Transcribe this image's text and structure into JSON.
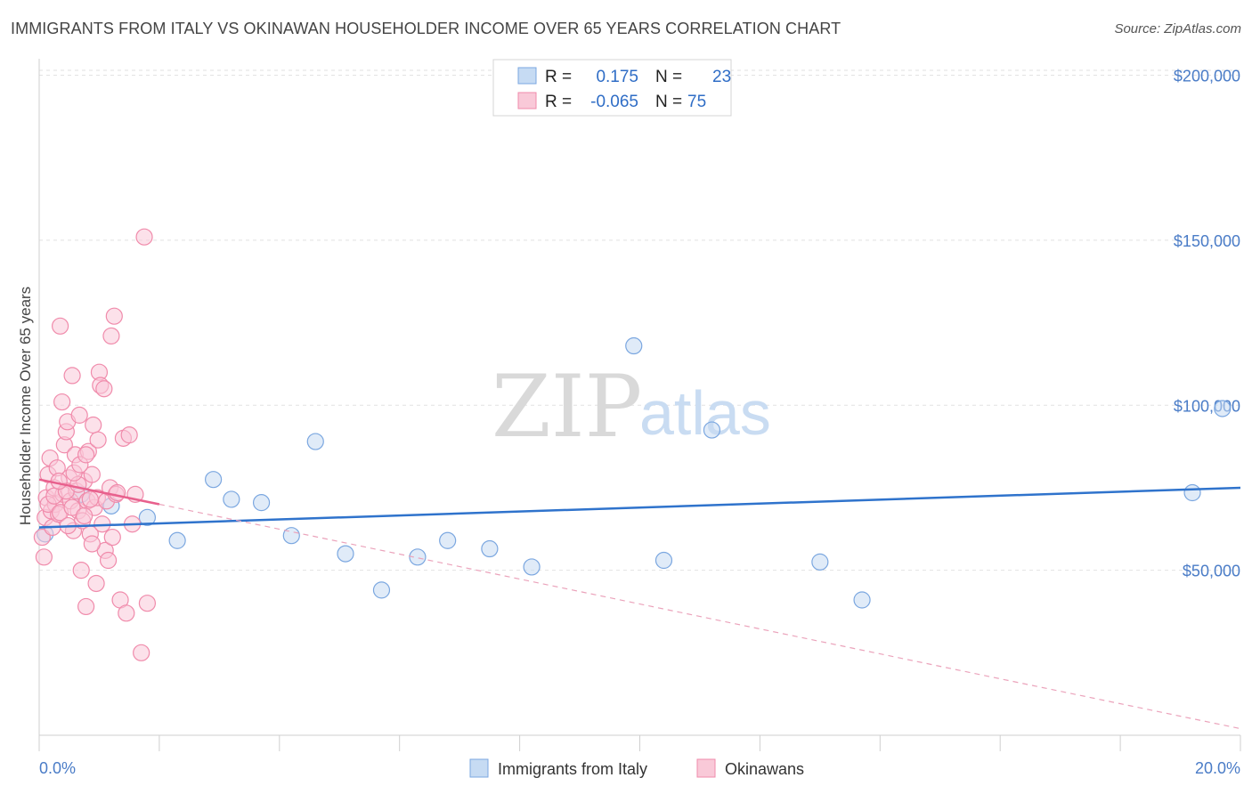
{
  "title": "IMMIGRANTS FROM ITALY VS OKINAWAN HOUSEHOLDER INCOME OVER 65 YEARS CORRELATION CHART",
  "source": "Source: ZipAtlas.com",
  "watermark": {
    "zip": "ZIP",
    "atlas": "atlas"
  },
  "chart_data": {
    "type": "scatter",
    "xlabel": "",
    "ylabel": "Householder Income Over 65 years",
    "xlim": [
      0,
      20
    ],
    "ylim": [
      0,
      205000
    ],
    "x_tick_labels": {
      "left": "0.0%",
      "right": "20.0%"
    },
    "y_ticks": [
      {
        "value": 50000,
        "label": "$50,000"
      },
      {
        "value": 100000,
        "label": "$100,000"
      },
      {
        "value": 150000,
        "label": "$150,000"
      },
      {
        "value": 200000,
        "label": "$200,000"
      }
    ],
    "legend": {
      "r_label": "R =",
      "n_label": "N =",
      "entries": [
        {
          "r": "0.175",
          "n": "23"
        },
        {
          "r": "-0.065",
          "n": "75"
        }
      ]
    },
    "series": [
      {
        "name": "Immigrants from Italy",
        "color": "#7ba7e0",
        "fill": "#c6dbf3",
        "trend_color": "#2f73cc",
        "trend": {
          "x0": 0,
          "y0": 63000,
          "x1": 20,
          "y1": 75000
        },
        "points": [
          [
            0.1,
            61000
          ],
          [
            0.7,
            73000
          ],
          [
            1.2,
            69500
          ],
          [
            1.8,
            66000
          ],
          [
            2.3,
            59000
          ],
          [
            2.9,
            77500
          ],
          [
            3.2,
            71500
          ],
          [
            3.7,
            70500
          ],
          [
            4.2,
            60500
          ],
          [
            4.6,
            89000
          ],
          [
            5.1,
            55000
          ],
          [
            5.7,
            44000
          ],
          [
            6.3,
            54000
          ],
          [
            6.8,
            59000
          ],
          [
            7.5,
            56500
          ],
          [
            8.2,
            51000
          ],
          [
            9.9,
            118000
          ],
          [
            10.4,
            53000
          ],
          [
            11.2,
            92500
          ],
          [
            13.0,
            52500
          ],
          [
            13.7,
            41000
          ],
          [
            19.2,
            73500
          ],
          [
            19.7,
            99000
          ]
        ]
      },
      {
        "name": "Okinawans",
        "color": "#f08bab",
        "fill": "#f9c9d8",
        "trend_color": "#e8608d",
        "trend": {
          "x0": 0,
          "y0": 77500,
          "x1": 2.0,
          "y1": 70000
        },
        "trend_dashed": {
          "x0": 2.0,
          "y0": 70000,
          "x1": 20,
          "y1": 2000
        },
        "points": [
          [
            0.05,
            60000
          ],
          [
            0.08,
            54000
          ],
          [
            0.1,
            66000
          ],
          [
            0.12,
            72000
          ],
          [
            0.15,
            79000
          ],
          [
            0.18,
            84000
          ],
          [
            0.2,
            68000
          ],
          [
            0.22,
            63000
          ],
          [
            0.25,
            75000
          ],
          [
            0.27,
            70000
          ],
          [
            0.3,
            81000
          ],
          [
            0.32,
            67000
          ],
          [
            0.35,
            124000
          ],
          [
            0.38,
            101000
          ],
          [
            0.4,
            73000
          ],
          [
            0.42,
            88000
          ],
          [
            0.45,
            92000
          ],
          [
            0.47,
            95000
          ],
          [
            0.5,
            78000
          ],
          [
            0.52,
            71000
          ],
          [
            0.55,
            109000
          ],
          [
            0.57,
            62000
          ],
          [
            0.6,
            85000
          ],
          [
            0.62,
            74000
          ],
          [
            0.65,
            68000
          ],
          [
            0.67,
            97000
          ],
          [
            0.7,
            50000
          ],
          [
            0.72,
            65000
          ],
          [
            0.75,
            77000
          ],
          [
            0.78,
            39000
          ],
          [
            0.8,
            71000
          ],
          [
            0.82,
            86000
          ],
          [
            0.85,
            61000
          ],
          [
            0.88,
            79000
          ],
          [
            0.9,
            94000
          ],
          [
            0.92,
            69000
          ],
          [
            0.95,
            46000
          ],
          [
            0.97,
            72000
          ],
          [
            1.0,
            110000
          ],
          [
            1.02,
            106000
          ],
          [
            1.05,
            64000
          ],
          [
            1.08,
            105000
          ],
          [
            1.1,
            56000
          ],
          [
            1.12,
            71000
          ],
          [
            1.15,
            53000
          ],
          [
            1.18,
            75000
          ],
          [
            1.2,
            121000
          ],
          [
            1.22,
            60000
          ],
          [
            1.25,
            127000
          ],
          [
            1.28,
            73000
          ],
          [
            1.3,
            73500
          ],
          [
            1.35,
            41000
          ],
          [
            1.4,
            90000
          ],
          [
            1.45,
            37000
          ],
          [
            1.5,
            91000
          ],
          [
            1.55,
            64000
          ],
          [
            1.6,
            73000
          ],
          [
            1.7,
            25000
          ],
          [
            1.75,
            151000
          ],
          [
            1.8,
            40000
          ],
          [
            0.15,
            70000
          ],
          [
            0.25,
            72500
          ],
          [
            0.35,
            67500
          ],
          [
            0.45,
            74000
          ],
          [
            0.55,
            69000
          ],
          [
            0.65,
            76000
          ],
          [
            0.75,
            66500
          ],
          [
            0.85,
            71500
          ],
          [
            0.33,
            77000
          ],
          [
            0.48,
            63500
          ],
          [
            0.58,
            79500
          ],
          [
            0.68,
            82000
          ],
          [
            0.78,
            85000
          ],
          [
            0.88,
            58000
          ],
          [
            0.98,
            89500
          ]
        ]
      }
    ]
  }
}
